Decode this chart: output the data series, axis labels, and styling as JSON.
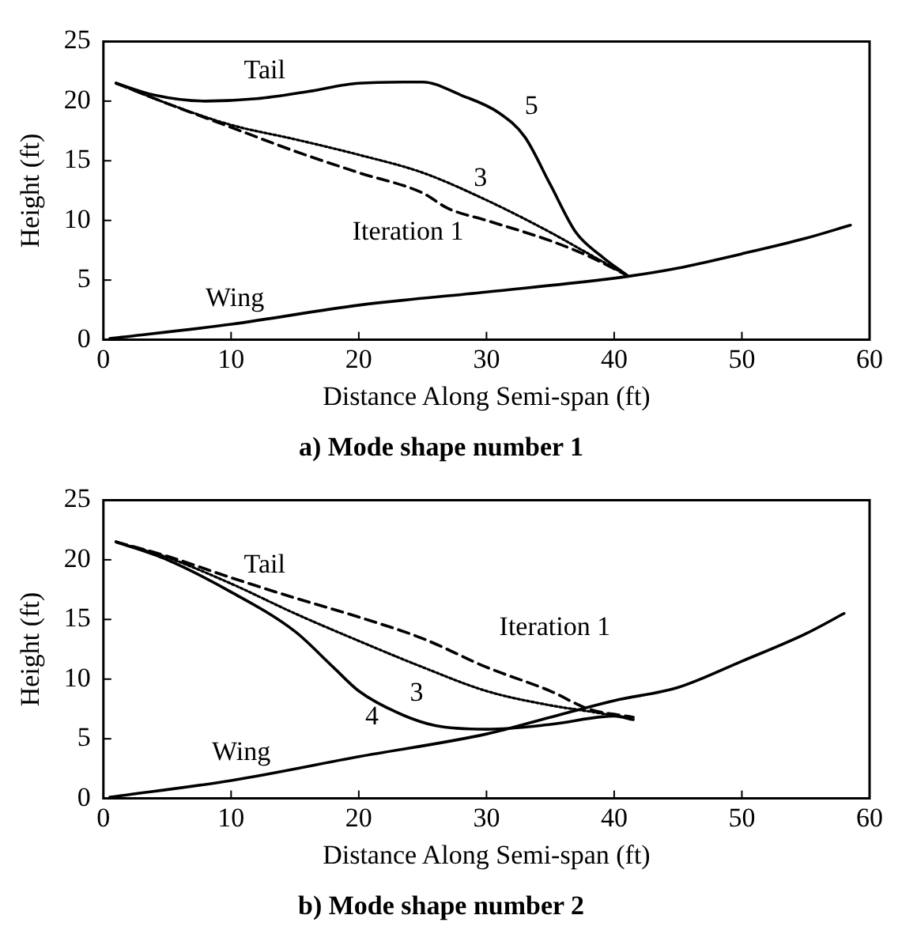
{
  "chart_data": [
    {
      "type": "line",
      "title": "a) Mode shape number 1",
      "xlabel": "Distance Along Semi-span (ft)",
      "ylabel": "Height (ft)",
      "xlim": [
        0,
        60
      ],
      "xticks": [
        0,
        10,
        20,
        30,
        40,
        50,
        60
      ],
      "ylim": [
        0,
        25
      ],
      "yticks": [
        0,
        5,
        10,
        15,
        20,
        25
      ],
      "grid": false,
      "legend": false,
      "marker": "none",
      "annotations": [
        "Tail"
      ],
      "series": [
        {
          "name": "Wing",
          "color": "#000000",
          "line_style": "solid",
          "x": [
            0.5,
            10,
            20,
            30,
            41,
            45,
            50,
            55,
            58.5
          ],
          "values": [
            0.1,
            1.3,
            2.9,
            4.0,
            5.3,
            6.0,
            7.2,
            8.5,
            9.6
          ]
        },
        {
          "name": "Iteration 1",
          "color": "#000000",
          "line_style": "dashed",
          "x": [
            1,
            5,
            10,
            15,
            20,
            25,
            27,
            30,
            35,
            38,
            41
          ],
          "values": [
            21.5,
            19.8,
            17.8,
            15.8,
            14,
            12.3,
            11,
            10,
            8.3,
            7,
            5.4
          ]
        },
        {
          "name": "3",
          "color": "#000000",
          "line_style": "dotted",
          "x": [
            1,
            5,
            10,
            15,
            20,
            25,
            30,
            35,
            38,
            41
          ],
          "values": [
            21.5,
            19.8,
            18,
            16.8,
            15.5,
            14,
            11.7,
            9,
            7.2,
            5.4
          ]
        },
        {
          "name": "5",
          "color": "#000000",
          "line_style": "solid",
          "x": [
            1,
            4,
            8,
            12,
            16,
            20,
            25,
            28,
            31,
            33,
            35,
            37,
            39,
            41
          ],
          "values": [
            21.5,
            20.5,
            20,
            20.2,
            20.8,
            21.5,
            21.6,
            20.5,
            19,
            17,
            13,
            9,
            7,
            5.4
          ]
        }
      ]
    },
    {
      "type": "line",
      "title": "b) Mode shape number 2",
      "xlabel": "Distance Along Semi-span (ft)",
      "ylabel": "Height (ft)",
      "xlim": [
        0,
        60
      ],
      "xticks": [
        0,
        10,
        20,
        30,
        40,
        50,
        60
      ],
      "ylim": [
        0,
        25
      ],
      "yticks": [
        0,
        5,
        10,
        15,
        20,
        25
      ],
      "grid": false,
      "legend": false,
      "marker": "none",
      "annotations": [
        "Tail"
      ],
      "series": [
        {
          "name": "Wing",
          "color": "#000000",
          "line_style": "solid",
          "x": [
            0.5,
            10,
            20,
            30,
            35,
            40,
            45,
            50,
            55,
            58
          ],
          "values": [
            0.1,
            1.5,
            3.5,
            5.4,
            6.8,
            8.2,
            9.3,
            11.5,
            13.8,
            15.5
          ]
        },
        {
          "name": "Iteration 1",
          "color": "#000000",
          "line_style": "dashed",
          "x": [
            1,
            5,
            10,
            15,
            20,
            25,
            30,
            35,
            38,
            41.5
          ],
          "values": [
            21.5,
            20.3,
            18.5,
            16.8,
            15.2,
            13.4,
            11,
            9,
            7.5,
            6.8
          ]
        },
        {
          "name": "3",
          "color": "#000000",
          "line_style": "dotted",
          "x": [
            1,
            5,
            10,
            15,
            20,
            25,
            30,
            35,
            38,
            41.5
          ],
          "values": [
            21.5,
            20.2,
            18,
            15.5,
            13.2,
            11,
            9,
            7.8,
            7.3,
            6.7
          ]
        },
        {
          "name": "4",
          "color": "#000000",
          "line_style": "solid",
          "x": [
            1,
            5,
            10,
            15,
            18,
            20,
            23,
            26,
            30,
            35,
            40,
            41.5
          ],
          "values": [
            21.5,
            20,
            17.3,
            14,
            11,
            9,
            7.2,
            6.1,
            5.8,
            6.2,
            6.9,
            6.6
          ]
        }
      ]
    }
  ]
}
